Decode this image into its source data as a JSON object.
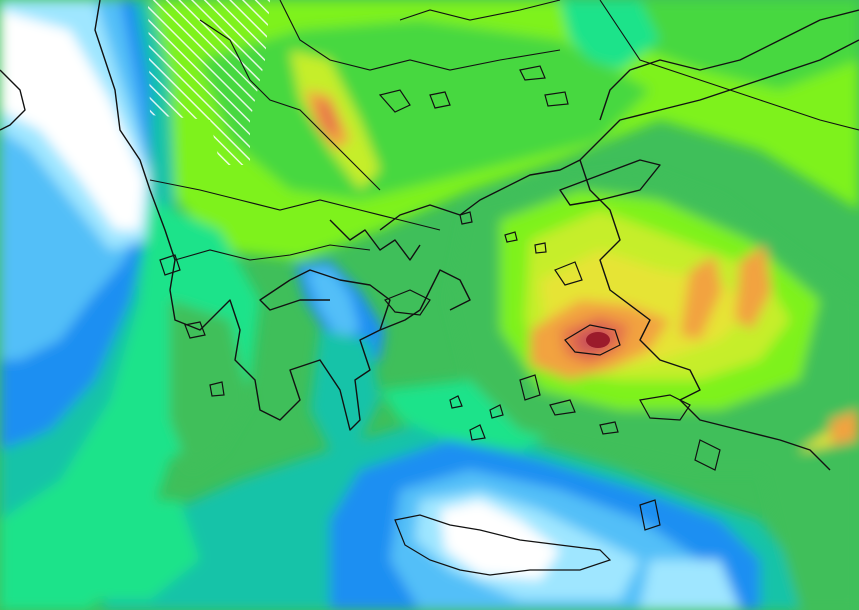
{
  "map": {
    "kind": "weather model field over Greece and the Aegean",
    "colors": {
      "white": "#ffffff",
      "pale_blue": "#9fe6ff",
      "light_blue": "#52bff8",
      "blue": "#1e8ff2",
      "teal": "#18c3a8",
      "mint": "#1de38a",
      "green": "#3fbf5a",
      "light_green": "#47d83f",
      "lime": "#7ef21a",
      "yellow_green": "#c6ee2a",
      "yellow": "#e6e436",
      "orange": "#f2a341",
      "red_orange": "#e6744a",
      "red": "#c9505a",
      "dark_red": "#9b1b2b",
      "coast": "#111111",
      "hatch": "#ffffff"
    },
    "regions": [
      {
        "name": "west-ionian-sea-region",
        "fill": "blue"
      },
      {
        "name": "south-aegean-region",
        "fill": "teal"
      },
      {
        "name": "north-aegean-region",
        "fill": "mint"
      },
      {
        "name": "east-aegean-maximum-region",
        "fill": "orange"
      },
      {
        "name": "crete-region",
        "fill": "pale_blue"
      }
    ]
  }
}
